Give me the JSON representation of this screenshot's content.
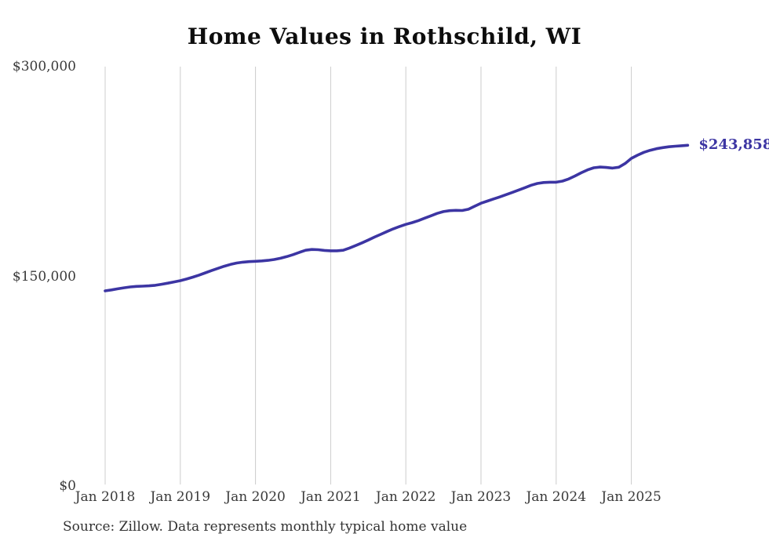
{
  "title": "Home Values in Rothschild, WI",
  "end_label": "$243,858",
  "source": "Source: Zillow. Data represents monthly typical home value",
  "colors": {
    "line": "#3c35a3",
    "grid": "#cccccc",
    "title": "#0d0d0d",
    "axis_text": "#3a3a3a",
    "end_label": "#3c35a3"
  },
  "chart_data": {
    "type": "line",
    "title": "Home Values in Rothschild, WI",
    "xlabel": "",
    "ylabel": "",
    "x_start": "Jan 2018",
    "x_end": "Oct 2025",
    "x_interval": "monthly",
    "x_tick_labels": [
      "Jan 2018",
      "Jan 2019",
      "Jan 2020",
      "Jan 2021",
      "Jan 2022",
      "Jan 2023",
      "Jan 2024",
      "Jan 2025"
    ],
    "y_tick_labels": [
      "$0",
      "$150,000",
      "$300,000"
    ],
    "ylim": [
      0,
      300000
    ],
    "grid": "vertical-only",
    "legend": "none",
    "end_value": 243858,
    "series": [
      {
        "name": "Typical home value",
        "values": [
          139900,
          140600,
          141400,
          142100,
          142700,
          143100,
          143300,
          143500,
          143900,
          144600,
          145400,
          146300,
          147200,
          148400,
          149700,
          151200,
          152800,
          154400,
          156000,
          157500,
          158800,
          159800,
          160400,
          160800,
          161000,
          161300,
          161700,
          162300,
          163200,
          164400,
          165800,
          167400,
          168900,
          169500,
          169300,
          168800,
          168500,
          168500,
          168900,
          170500,
          172300,
          174200,
          176200,
          178300,
          180300,
          182300,
          184200,
          185900,
          187400,
          188600,
          190100,
          191800,
          193500,
          195200,
          196500,
          197200,
          197400,
          197300,
          198200,
          200400,
          202500,
          204000,
          205500,
          207000,
          208600,
          210200,
          211900,
          213600,
          215300,
          216600,
          217300,
          217500,
          217500,
          218300,
          219800,
          221900,
          224200,
          226300,
          227800,
          228300,
          228000,
          227600,
          228200,
          230800,
          234500,
          236800,
          238800,
          240300,
          241400,
          242200,
          242800,
          243200,
          243500,
          243858
        ]
      }
    ]
  }
}
